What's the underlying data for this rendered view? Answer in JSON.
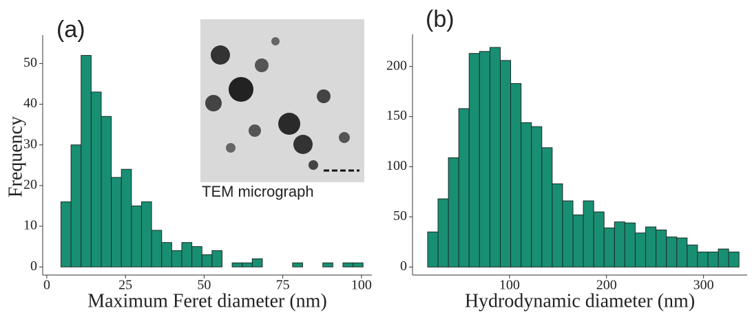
{
  "chart_data": [
    {
      "type": "histogram",
      "panel_label": "(a)",
      "x_label": "Maximum Feret diameter (nm)",
      "y_label": "Frequency",
      "inset_label": "TEM micrograph",
      "color": "#188f73",
      "bins": [
        4.5,
        7.7,
        10.9,
        14.1,
        17.3,
        20.5,
        23.7,
        26.9,
        30.1,
        33.3,
        36.5,
        39.7,
        42.9,
        46.1,
        49.3,
        52.5,
        55.7,
        58.9,
        62.1,
        65.3,
        68.5,
        71.7,
        74.9,
        78.1,
        81.3,
        84.5,
        87.7,
        90.9,
        94.1,
        97.3,
        100.5
      ],
      "values": [
        16,
        30,
        52,
        43,
        37,
        22,
        24,
        15,
        16,
        9,
        6,
        4,
        6,
        5,
        3,
        4,
        0,
        1,
        1,
        2,
        0,
        0,
        0,
        1,
        0,
        0,
        1,
        0,
        1,
        1
      ],
      "xlim": [
        -1.3,
        103.3
      ],
      "ylim": [
        -2,
        57
      ],
      "xticks": [
        0,
        25,
        50,
        75,
        100
      ],
      "yticks": [
        0,
        10,
        20,
        30,
        40,
        50
      ]
    },
    {
      "type": "histogram",
      "panel_label": "(b)",
      "x_label": "Hydrodynamic diameter (nm)",
      "color": "#188f73",
      "bins": [
        15.6,
        26.3,
        37,
        47.7,
        58.4,
        69.1,
        79.8,
        90.5,
        101.2,
        111.9,
        122.6,
        133.3,
        144,
        154.7,
        165.4,
        176.1,
        186.8,
        197.5,
        208.2,
        218.9,
        229.6,
        240.3,
        251,
        261.7,
        272.4,
        283.1,
        293.8,
        304.5,
        315.2,
        325.9,
        336.6
      ],
      "values": [
        35,
        68,
        109,
        158,
        213,
        215,
        219,
        206,
        183,
        144,
        140,
        119,
        83,
        66,
        52,
        66,
        55,
        39,
        45,
        44,
        34,
        40,
        37,
        30,
        29,
        22,
        15,
        15,
        18,
        15
      ],
      "xlim": [
        0,
        345
      ],
      "ylim": [
        -8,
        232
      ],
      "xticks": [
        100,
        200,
        300
      ],
      "yticks": [
        0,
        50,
        100,
        150,
        200
      ]
    }
  ]
}
